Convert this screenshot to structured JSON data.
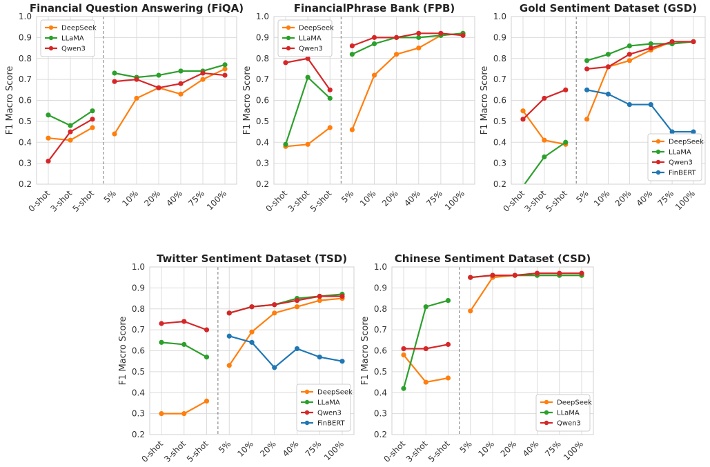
{
  "chart_data": [
    {
      "type": "line",
      "title": "Financial Question Answering (FiQA)",
      "ylabel": "F1 Macro Score",
      "ylim": [
        0.2,
        1.0
      ],
      "yticks": [
        "0.2",
        "0.3",
        "0.4",
        "0.5",
        "0.6",
        "0.7",
        "0.8",
        "0.9",
        "1.0"
      ],
      "categories": [
        "0-shot",
        "3-shot",
        "5-shot",
        "5%",
        "10%",
        "20%",
        "40%",
        "75%",
        "100%"
      ],
      "legend_loc": "top-left",
      "grid": true,
      "series": [
        {
          "name": "DeepSeek",
          "color": "#ff7f0e",
          "values": [
            0.42,
            0.41,
            0.47,
            0.44,
            0.61,
            0.66,
            0.63,
            0.7,
            0.75
          ]
        },
        {
          "name": "LLaMA",
          "color": "#2ca02c",
          "values": [
            0.53,
            0.48,
            0.55,
            0.73,
            0.71,
            0.72,
            0.74,
            0.74,
            0.77
          ]
        },
        {
          "name": "Qwen3",
          "color": "#d62728",
          "values": [
            0.31,
            0.45,
            0.51,
            0.69,
            0.7,
            0.66,
            0.68,
            0.73,
            0.72
          ]
        }
      ]
    },
    {
      "type": "line",
      "title": "FinancialPhrase Bank (FPB)",
      "ylabel": "F1 Macro Score",
      "ylim": [
        0.2,
        1.0
      ],
      "yticks": [
        "0.2",
        "0.3",
        "0.4",
        "0.5",
        "0.6",
        "0.7",
        "0.8",
        "0.9",
        "1.0"
      ],
      "categories": [
        "0-shot",
        "3-shot",
        "5-shot",
        "5%",
        "10%",
        "20%",
        "40%",
        "75%",
        "100%"
      ],
      "legend_loc": "top-left",
      "grid": true,
      "series": [
        {
          "name": "DeepSeek",
          "color": "#ff7f0e",
          "values": [
            0.38,
            0.39,
            0.47,
            0.46,
            0.72,
            0.82,
            0.85,
            0.91,
            0.92
          ]
        },
        {
          "name": "LLaMA",
          "color": "#2ca02c",
          "values": [
            0.39,
            0.71,
            0.61,
            0.82,
            0.87,
            0.9,
            0.9,
            0.91,
            0.92
          ]
        },
        {
          "name": "Qwen3",
          "color": "#d62728",
          "values": [
            0.78,
            0.8,
            0.65,
            0.86,
            0.9,
            0.9,
            0.92,
            0.92,
            0.91
          ]
        }
      ]
    },
    {
      "type": "line",
      "title": "Gold Sentiment Dataset (GSD)",
      "ylabel": "F1 Macro Score",
      "ylim": [
        0.2,
        1.0
      ],
      "yticks": [
        "0.2",
        "0.3",
        "0.4",
        "0.5",
        "0.6",
        "0.7",
        "0.8",
        "0.9",
        "1.0"
      ],
      "categories": [
        "0-shot",
        "3-shot",
        "5-shot",
        "5%",
        "10%",
        "20%",
        "40%",
        "75%",
        "100%"
      ],
      "legend_loc": "bottom-right",
      "grid": true,
      "series": [
        {
          "name": "DeepSeek",
          "color": "#ff7f0e",
          "values": [
            0.55,
            0.41,
            0.39,
            0.51,
            0.76,
            0.79,
            0.84,
            0.88,
            0.88
          ]
        },
        {
          "name": "LLaMA",
          "color": "#2ca02c",
          "values": [
            0.19,
            0.33,
            0.4,
            0.79,
            0.82,
            0.86,
            0.87,
            0.87,
            0.88
          ]
        },
        {
          "name": "Qwen3",
          "color": "#d62728",
          "values": [
            0.51,
            0.61,
            0.65,
            0.75,
            0.76,
            0.82,
            0.85,
            0.88,
            0.88
          ]
        },
        {
          "name": "FinBERT",
          "color": "#1f77b4",
          "values": [
            null,
            null,
            null,
            0.65,
            0.63,
            0.58,
            0.58,
            0.45,
            0.45
          ]
        }
      ]
    },
    {
      "type": "line",
      "title": "Twitter Sentiment Dataset (TSD)",
      "ylabel": "F1 Macro Score",
      "ylim": [
        0.2,
        1.0
      ],
      "yticks": [
        "0.2",
        "0.3",
        "0.4",
        "0.5",
        "0.6",
        "0.7",
        "0.8",
        "0.9",
        "1.0"
      ],
      "categories": [
        "0-shot",
        "3-shot",
        "5-shot",
        "5%",
        "10%",
        "20%",
        "40%",
        "75%",
        "100%"
      ],
      "legend_loc": "bottom-right",
      "grid": true,
      "series": [
        {
          "name": "DeepSeek",
          "color": "#ff7f0e",
          "values": [
            0.3,
            0.3,
            0.36,
            0.53,
            0.69,
            0.78,
            0.81,
            0.84,
            0.85
          ]
        },
        {
          "name": "LLaMA",
          "color": "#2ca02c",
          "values": [
            0.64,
            0.63,
            0.57,
            0.78,
            0.81,
            0.82,
            0.85,
            0.86,
            0.87
          ]
        },
        {
          "name": "Qwen3",
          "color": "#d62728",
          "values": [
            0.73,
            0.74,
            0.7,
            0.78,
            0.81,
            0.82,
            0.84,
            0.86,
            0.86
          ]
        },
        {
          "name": "FinBERT",
          "color": "#1f77b4",
          "values": [
            null,
            null,
            null,
            0.67,
            0.64,
            0.52,
            0.61,
            0.57,
            0.55
          ]
        }
      ]
    },
    {
      "type": "line",
      "title": "Chinese Sentiment Dataset (CSD)",
      "ylabel": "F1 Macro Score",
      "ylim": [
        0.2,
        1.0
      ],
      "yticks": [
        "0.2",
        "0.3",
        "0.4",
        "0.5",
        "0.6",
        "0.7",
        "0.8",
        "0.9",
        "1.0"
      ],
      "categories": [
        "0-shot",
        "3-shot",
        "5-shot",
        "5%",
        "10%",
        "20%",
        "40%",
        "75%",
        "100%"
      ],
      "legend_loc": "bottom-right",
      "grid": true,
      "series": [
        {
          "name": "DeepSeek",
          "color": "#ff7f0e",
          "values": [
            0.58,
            0.45,
            0.47,
            0.79,
            0.95,
            0.96,
            0.96,
            0.96,
            0.96
          ]
        },
        {
          "name": "LLaMA",
          "color": "#2ca02c",
          "values": [
            0.42,
            0.81,
            0.84,
            0.95,
            0.96,
            0.96,
            0.96,
            0.96,
            0.96
          ]
        },
        {
          "name": "Qwen3",
          "color": "#d62728",
          "values": [
            0.61,
            0.61,
            0.63,
            0.95,
            0.96,
            0.96,
            0.97,
            0.97,
            0.97
          ]
        }
      ]
    }
  ]
}
